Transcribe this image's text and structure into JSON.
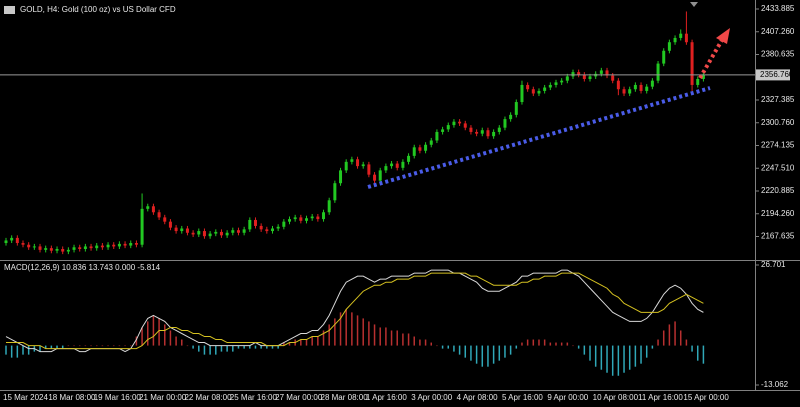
{
  "chart_data": [
    {
      "type": "candlestick",
      "title": "GOLD, H4:  Gold (100 oz) vs US Dollar CFD",
      "categories": [
        "15 Mar 2024",
        null,
        null,
        null,
        null,
        null,
        null,
        null,
        "18 Mar 08:00",
        null,
        null,
        null,
        null,
        null,
        null,
        null,
        "19 Mar 16:00",
        null,
        null,
        null,
        null,
        null,
        null,
        null,
        "21 Mar 00:00",
        null,
        null,
        null,
        null,
        null,
        null,
        null,
        "22 Mar 08:00",
        null,
        null,
        null,
        null,
        null,
        null,
        null,
        "25 Mar 16:00",
        null,
        null,
        null,
        null,
        null,
        null,
        null,
        "27 Mar 00:00",
        null,
        null,
        null,
        null,
        null,
        null,
        null,
        "28 Mar 08:00",
        null,
        null,
        null,
        null,
        null,
        null,
        null,
        "1 Apr 16:00",
        null,
        null,
        null,
        null,
        null,
        null,
        null,
        "3 Apr 00:00",
        null,
        null,
        null,
        null,
        null,
        null,
        null,
        "4 Apr 08:00",
        null,
        null,
        null,
        null,
        null,
        null,
        null,
        "5 Apr 16:00",
        null,
        null,
        null,
        null,
        null,
        null,
        null,
        "9 Apr 00:00",
        null,
        null,
        null,
        null,
        null,
        null,
        null,
        "10 Apr 08:00",
        null,
        null,
        null,
        null,
        null,
        null,
        null,
        "11 Apr 16:00",
        null,
        null,
        null,
        null,
        null,
        null,
        null,
        "15 Apr 00:00",
        null,
        null,
        null
      ],
      "open": [
        2160,
        2163,
        2166,
        2160,
        2158,
        2155,
        2156,
        2152,
        2154,
        2151,
        2153,
        2150,
        2152,
        2155,
        2153,
        2156,
        2154,
        2157,
        2155,
        2158,
        2156,
        2159,
        2157,
        2160,
        2158,
        2200,
        2203,
        2196,
        2190,
        2185,
        2178,
        2174,
        2177,
        2172,
        2170,
        2174,
        2168,
        2171,
        2173,
        2169,
        2172,
        2175,
        2172,
        2176,
        2187,
        2180,
        2176,
        2174,
        2177,
        2179,
        2185,
        2188,
        2190,
        2186,
        2189,
        2191,
        2188,
        2196,
        2210,
        2230,
        2245,
        2255,
        2258,
        2250,
        2252,
        2240,
        2233,
        2245,
        2250,
        2253,
        2248,
        2255,
        2262,
        2272,
        2268,
        2275,
        2280,
        2290,
        2293,
        2298,
        2302,
        2300,
        2295,
        2290,
        2288,
        2292,
        2285,
        2290,
        2295,
        2305,
        2310,
        2325,
        2345,
        2340,
        2335,
        2338,
        2342,
        2345,
        2348,
        2350,
        2355,
        2360,
        2357,
        2352,
        2355,
        2358,
        2362,
        2356,
        2350,
        2340,
        2335,
        2340,
        2345,
        2338,
        2343,
        2350,
        2370,
        2385,
        2395,
        2400,
        2405,
        2395,
        2345,
        2352
      ],
      "high": [
        2166,
        2169,
        2169,
        2163,
        2161,
        2159,
        2159,
        2157,
        2157,
        2156,
        2156,
        2155,
        2158,
        2158,
        2159,
        2159,
        2160,
        2160,
        2161,
        2161,
        2162,
        2162,
        2163,
        2163,
        2218,
        2206,
        2206,
        2199,
        2193,
        2188,
        2181,
        2180,
        2180,
        2175,
        2177,
        2177,
        2174,
        2176,
        2176,
        2175,
        2178,
        2178,
        2179,
        2190,
        2190,
        2183,
        2179,
        2180,
        2182,
        2188,
        2191,
        2193,
        2193,
        2192,
        2194,
        2194,
        2199,
        2213,
        2233,
        2248,
        2258,
        2261,
        2261,
        2255,
        2255,
        2243,
        2248,
        2253,
        2256,
        2256,
        2258,
        2265,
        2275,
        2275,
        2278,
        2283,
        2293,
        2296,
        2301,
        2305,
        2305,
        2303,
        2298,
        2293,
        2295,
        2295,
        2293,
        2298,
        2308,
        2313,
        2328,
        2350,
        2348,
        2343,
        2341,
        2345,
        2348,
        2351,
        2353,
        2358,
        2363,
        2363,
        2360,
        2358,
        2361,
        2365,
        2365,
        2359,
        2353,
        2343,
        2343,
        2348,
        2348,
        2346,
        2353,
        2373,
        2388,
        2398,
        2403,
        2410,
        2431,
        2398,
        2355,
        2359
      ],
      "low": [
        2157,
        2160,
        2157,
        2155,
        2152,
        2152,
        2149,
        2149,
        2148,
        2148,
        2147,
        2147,
        2149,
        2150,
        2150,
        2151,
        2151,
        2152,
        2152,
        2153,
        2153,
        2154,
        2154,
        2155,
        2155,
        2197,
        2193,
        2187,
        2182,
        2175,
        2171,
        2171,
        2169,
        2167,
        2167,
        2165,
        2165,
        2168,
        2166,
        2166,
        2169,
        2169,
        2169,
        2173,
        2177,
        2173,
        2171,
        2171,
        2174,
        2176,
        2182,
        2185,
        2183,
        2183,
        2186,
        2185,
        2185,
        2193,
        2207,
        2227,
        2242,
        2252,
        2247,
        2247,
        2237,
        2228,
        2230,
        2242,
        2247,
        2245,
        2245,
        2252,
        2259,
        2265,
        2265,
        2272,
        2277,
        2287,
        2290,
        2295,
        2297,
        2292,
        2287,
        2285,
        2285,
        2282,
        2282,
        2287,
        2292,
        2302,
        2307,
        2322,
        2337,
        2332,
        2332,
        2335,
        2339,
        2342,
        2345,
        2347,
        2352,
        2354,
        2349,
        2349,
        2352,
        2355,
        2353,
        2347,
        2333,
        2332,
        2332,
        2337,
        2335,
        2335,
        2340,
        2347,
        2367,
        2382,
        2392,
        2397,
        2392,
        2338,
        2342,
        2349
      ],
      "close": [
        2163,
        2166,
        2160,
        2158,
        2155,
        2156,
        2152,
        2154,
        2151,
        2153,
        2150,
        2152,
        2155,
        2153,
        2156,
        2154,
        2157,
        2155,
        2158,
        2156,
        2159,
        2157,
        2160,
        2158,
        2200,
        2203,
        2196,
        2190,
        2185,
        2178,
        2174,
        2177,
        2172,
        2170,
        2174,
        2168,
        2171,
        2173,
        2169,
        2172,
        2175,
        2172,
        2176,
        2187,
        2180,
        2176,
        2174,
        2177,
        2179,
        2185,
        2188,
        2190,
        2186,
        2189,
        2191,
        2188,
        2196,
        2210,
        2230,
        2245,
        2255,
        2258,
        2250,
        2252,
        2240,
        2233,
        2245,
        2250,
        2253,
        2248,
        2255,
        2262,
        2272,
        2268,
        2275,
        2280,
        2290,
        2293,
        2298,
        2302,
        2300,
        2295,
        2290,
        2288,
        2292,
        2285,
        2290,
        2295,
        2305,
        2310,
        2325,
        2345,
        2340,
        2335,
        2338,
        2342,
        2345,
        2348,
        2350,
        2355,
        2360,
        2357,
        2352,
        2355,
        2358,
        2362,
        2356,
        2350,
        2340,
        2335,
        2340,
        2345,
        2338,
        2343,
        2350,
        2370,
        2385,
        2395,
        2400,
        2405,
        2395,
        2345,
        2352,
        2356.76
      ],
      "up_color": "#22c822",
      "down_color": "#e02020",
      "ylim": [
        2140.13,
        2444.42
      ],
      "yticks": [
        2433.885,
        {
          "value": 2407.26,
          "label": "2407.260"
        },
        2380.635,
        2327.385,
        {
          "value": 2300.76,
          "label": "2300.760"
        },
        2274.135,
        {
          "value": 2247.51,
          "label": "2247.510"
        },
        2220.885,
        {
          "value": 2194.26,
          "label": "2194.260"
        },
        2167.635
      ],
      "last_price": {
        "value": 2356.76,
        "label": "2356.760"
      }
    },
    {
      "type": "macd",
      "title": "MACD(12,26,9) 10.836 13.743 0.000 -5.814",
      "histogram": {
        "positive_color": "#b83030",
        "negative_color": "#30a8b8",
        "values": [
          -3,
          -4,
          -4,
          -3,
          -3,
          -2,
          -2,
          -1,
          -1,
          -1,
          -1,
          0,
          0,
          0,
          0,
          0,
          0,
          0,
          0,
          0,
          0,
          0,
          0,
          3,
          6,
          8,
          10,
          9,
          7,
          5,
          3,
          2,
          0,
          -1,
          -2,
          -3,
          -3,
          -3,
          -2,
          -2,
          -2,
          -1,
          -1,
          -1,
          -1,
          -1,
          -1,
          -1,
          -1,
          1,
          1,
          2,
          2,
          2,
          3,
          3,
          5,
          7,
          9,
          11,
          12,
          11,
          10,
          9,
          8,
          7,
          6,
          6,
          5,
          5,
          4,
          4,
          3,
          2,
          2,
          1,
          0,
          -1,
          -1,
          -2,
          -3,
          -4,
          -5,
          -6,
          -7,
          -7,
          -6,
          -5,
          -4,
          -3,
          -1,
          1,
          2,
          2,
          2,
          2,
          1,
          1,
          1,
          1,
          0,
          -1,
          -3,
          -5,
          -7,
          -8,
          -9,
          -10,
          -10,
          -9,
          -8,
          -7,
          -6,
          -4,
          -1,
          2,
          5,
          7,
          8,
          5,
          2,
          -2,
          -5,
          -6
        ]
      },
      "series": [
        {
          "color": "#d8d8d8",
          "values": [
            3,
            2,
            1,
            0,
            -1,
            -1,
            -2,
            -2,
            -2,
            -1,
            -1,
            -1,
            -1,
            -2,
            -2,
            -1,
            -1,
            -1,
            -1,
            -1,
            -1,
            -2,
            -1,
            2,
            6,
            9,
            10,
            9,
            8,
            6,
            5,
            4,
            3,
            2,
            1,
            1,
            0,
            0,
            0,
            0,
            0,
            0,
            0,
            0,
            1,
            0,
            0,
            0,
            0,
            1,
            2,
            3,
            4,
            4,
            5,
            5,
            7,
            10,
            14,
            18,
            21,
            22,
            23,
            23,
            22,
            21,
            22,
            22,
            23,
            23,
            23,
            23,
            24,
            24,
            24,
            25,
            25,
            25,
            25,
            24,
            24,
            23,
            22,
            21,
            19,
            18,
            18,
            18,
            19,
            20,
            21,
            23,
            23,
            24,
            24,
            24,
            24,
            24,
            25,
            25,
            24,
            23,
            21,
            19,
            17,
            15,
            13,
            11,
            10,
            9,
            8,
            8,
            8,
            9,
            11,
            14,
            17,
            19,
            20,
            19,
            17,
            14,
            12,
            11
          ]
        },
        {
          "color": "#d4c020",
          "values": [
            1,
            1,
            1,
            1,
            0,
            0,
            0,
            -1,
            -1,
            -1,
            -1,
            -1,
            -1,
            -1,
            -1,
            -1,
            -1,
            -1,
            -1,
            -1,
            -1,
            -1,
            -1,
            -1,
            0,
            2,
            3,
            5,
            5,
            6,
            6,
            5,
            5,
            4,
            4,
            3,
            3,
            2,
            2,
            1,
            1,
            1,
            1,
            1,
            1,
            1,
            0,
            0,
            0,
            0,
            1,
            1,
            2,
            2,
            3,
            3,
            4,
            5,
            7,
            9,
            12,
            14,
            16,
            18,
            19,
            20,
            20,
            21,
            21,
            22,
            22,
            22,
            23,
            23,
            23,
            24,
            24,
            24,
            24,
            24,
            24,
            24,
            23,
            23,
            22,
            21,
            20,
            20,
            20,
            20,
            20,
            21,
            21,
            22,
            22,
            23,
            23,
            23,
            24,
            24,
            24,
            24,
            23,
            22,
            21,
            20,
            19,
            17,
            16,
            14,
            13,
            12,
            11,
            11,
            11,
            11,
            12,
            14,
            15,
            16,
            17,
            16,
            15,
            14
          ]
        }
      ],
      "ylim": [
        -14.72,
        27.69
      ],
      "yticks": [
        26.701,
        -13.062
      ]
    }
  ]
}
